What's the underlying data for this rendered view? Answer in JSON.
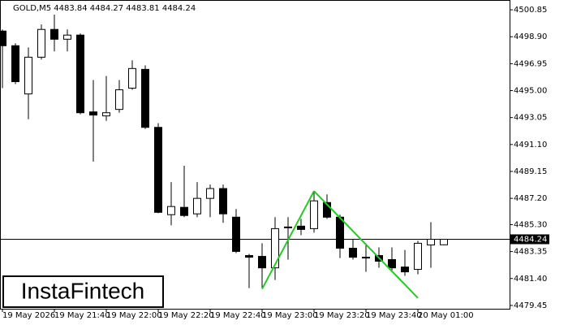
{
  "chart_data": {
    "type": "candlestick",
    "header": "GOLD,M5  4483.84 4484.27 4483.81 4484.24",
    "watermark": "InstaFintech",
    "categories": [
      "19 May 2026",
      null,
      null,
      null,
      "19 May 21:40",
      null,
      null,
      null,
      "19 May 22:00",
      null,
      null,
      null,
      "19 May 22:20",
      null,
      null,
      null,
      "19 May 22:40",
      null,
      null,
      null,
      "19 May 23:00",
      null,
      null,
      null,
      "19 May 23:20",
      null,
      null,
      null,
      "19 May 23:40",
      null,
      null,
      null,
      "20 May 01:00",
      null,
      null
    ],
    "open": [
      4499.31,
      4498.25,
      4494.76,
      4497.42,
      4499.43,
      4498.72,
      4499.02,
      4493.46,
      4493.17,
      4493.64,
      4495.18,
      4496.54,
      4492.34,
      4486.02,
      4486.55,
      4486.08,
      4487.2,
      4487.91,
      4485.84,
      4483.06,
      4483.0,
      4482.17,
      4485.07,
      4485.19,
      4485.01,
      4486.9,
      4485.84,
      4483.59,
      4482.94,
      4483.06,
      4482.77,
      4482.23,
      4482.06,
      4483.83,
      4483.84
    ],
    "high": [
      4499.43,
      4498.43,
      4498.13,
      4499.79,
      4500.5,
      4499.43,
      4499.14,
      4495.77,
      4496.06,
      4495.77,
      4497.19,
      4496.83,
      4492.64,
      4488.38,
      4489.56,
      4488.38,
      4488.2,
      4488.2,
      4486.43,
      4483.18,
      4483.95,
      4485.84,
      4485.84,
      4485.72,
      4487.73,
      4487.49,
      4486.02,
      4484.24,
      4483.95,
      4483.65,
      4483.65,
      4483.47,
      4484.13,
      4485.48,
      4484.27
    ],
    "low": [
      4495.18,
      4495.47,
      4492.93,
      4497.25,
      4497.84,
      4497.84,
      4493.29,
      4489.86,
      4492.81,
      4493.4,
      4495.06,
      4492.22,
      4486.13,
      4485.25,
      4485.84,
      4485.84,
      4485.84,
      4485.43,
      4483.24,
      4480.7,
      4480.7,
      4481.29,
      4482.77,
      4484.54,
      4484.72,
      4485.72,
      4482.88,
      4482.77,
      4481.88,
      4482.17,
      4482.0,
      4481.59,
      4481.7,
      4482.17,
      4483.81
    ],
    "close": [
      4498.25,
      4495.65,
      4497.42,
      4499.43,
      4498.72,
      4499.02,
      4493.4,
      4493.23,
      4493.4,
      4495.06,
      4496.6,
      4492.34,
      4486.19,
      4486.61,
      4485.96,
      4487.2,
      4487.91,
      4486.08,
      4483.36,
      4482.94,
      4482.17,
      4485.01,
      4485.13,
      4484.95,
      4487.02,
      4485.84,
      4483.59,
      4482.94,
      4482.88,
      4482.65,
      4482.17,
      4481.88,
      4483.95,
      4484.24,
      4484.24
    ],
    "up_color": "#ffffff",
    "down_color": "#000000",
    "current_price": 4484.24,
    "pattern": {
      "color": "#22cc22",
      "values": [
        null,
        null,
        null,
        null,
        null,
        null,
        null,
        null,
        null,
        null,
        null,
        null,
        null,
        null,
        null,
        null,
        null,
        null,
        null,
        null,
        4480.64,
        null,
        null,
        null,
        4487.73,
        null,
        null,
        null,
        null,
        null,
        null,
        null,
        4479.99,
        null,
        null
      ]
    },
    "ylim": [
      4479.21,
      4501.56
    ],
    "yticks": [
      4500.85,
      {
        "value": 4498.9,
        "label": "4498.90"
      },
      4496.95,
      {
        "value": 4495,
        "label": "4495.00"
      },
      4493.05,
      {
        "value": 4491.1,
        "label": "4491.10"
      },
      4489.15,
      {
        "value": 4487.2,
        "label": "4487.20"
      },
      {
        "value": 4485.3,
        "label": "4485.30"
      },
      4483.35,
      {
        "value": 4481.4,
        "label": "4481.40"
      },
      4479.45
    ]
  }
}
